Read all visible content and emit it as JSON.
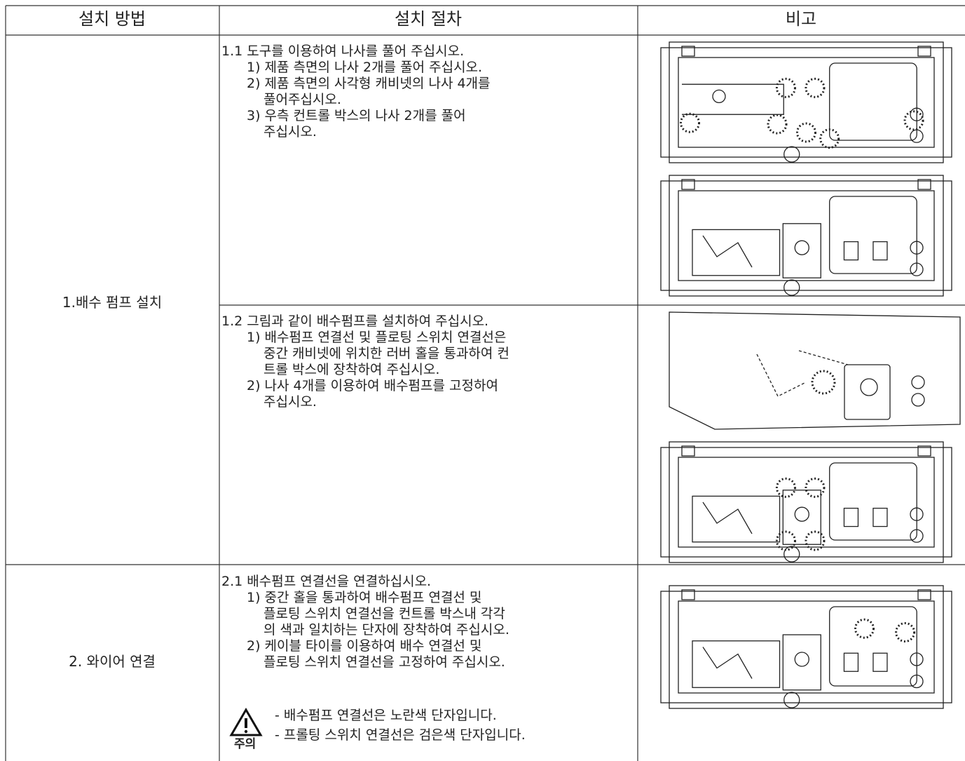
{
  "table": {
    "headers": [
      "설치 방법",
      "설치 절차",
      "비고"
    ],
    "sections": [
      {
        "method": "1.배수 펌프 설치",
        "steps": [
          {
            "title": "1.1 도구를 이용하여 나사를 풀어 주십시오.",
            "items": [
              [
                "1) 제품 측면의 나사 2개를 풀어 주십시오."
              ],
              [
                "2) 제품 측면의 사각형 캐비넷의 나사 4개를",
                "풀어주십시오."
              ],
              [
                "3) 우측 컨트롤 박스의 나사 2개를 풀어",
                "주십시오."
              ]
            ]
          },
          {
            "title": "1.2 그림과 같이 배수펌프를 설치하여 주십시오.",
            "items": [
              [
                "1) 배수펌프 연결선 및 플로팅 스위치 연결선은",
                "중간 캐비넷에 위치한 러버 홀을 통과하여 컨",
                "트롤 박스에 장착하여 주십시오."
              ],
              [
                "2) 나사 4개를 이용하여 배수펌프를 고정하여",
                "주십시오."
              ]
            ]
          }
        ]
      },
      {
        "method": "2. 와이어 연결",
        "steps": [
          {
            "title": "2.1 배수펌프 연결선을 연결하십시오.",
            "items": [
              [
                "1) 중간 홀을 통과하여 배수펌프 연결선 및",
                "플로팅 스위치 연결선을 컨트롤 박스내 각각",
                "의 색과 일치하는 단자에 장착하여 주십시오."
              ],
              [
                "2) 케이블 타이를 이용하여 배수 연결선 및",
                "플로팅 스위치 연결선을 고정하여 주십시오."
              ]
            ]
          }
        ],
        "caution": {
          "label": "주의",
          "lines": [
            "- 배수펌프 연결선은 노란색 단자입니다.",
            "- 프롤팅 스위치 연결선은 검은색 단자입니다."
          ]
        }
      }
    ]
  }
}
